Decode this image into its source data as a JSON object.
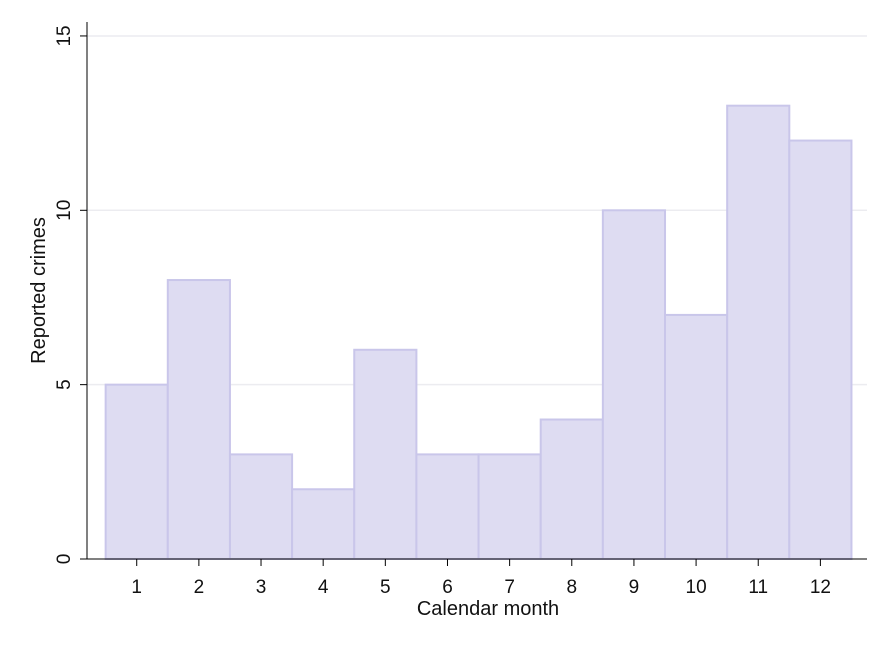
{
  "chart_data": {
    "type": "bar",
    "title": "",
    "xlabel": "Calendar month",
    "ylabel": "Reported crimes",
    "categories": [
      "1",
      "2",
      "3",
      "4",
      "5",
      "6",
      "7",
      "8",
      "9",
      "10",
      "11",
      "12"
    ],
    "values": [
      5,
      8,
      3,
      2,
      6,
      3,
      3,
      4,
      10,
      7,
      13,
      12
    ],
    "yticks": [
      "0",
      "5",
      "10",
      "15"
    ],
    "ylim": [
      0,
      15.4
    ],
    "xlim": [
      0.2,
      12.75
    ],
    "grid": true,
    "legend": "none",
    "colors": {
      "bar_fill": "#dedcf2",
      "bar_stroke": "#c9c6ea",
      "grid": "#ececf0",
      "axis": "#000000"
    }
  }
}
